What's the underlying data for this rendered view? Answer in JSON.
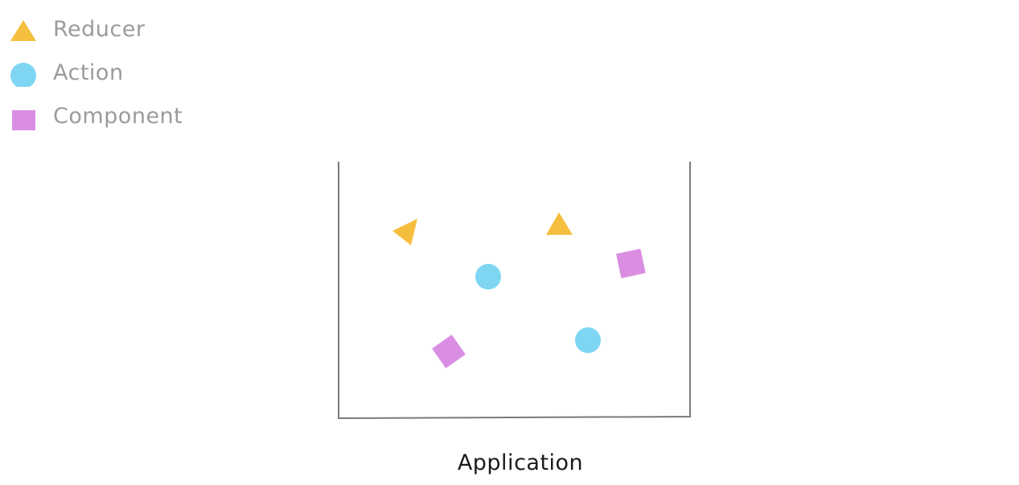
{
  "legend": {
    "items": [
      {
        "label": "Reducer",
        "shape": "triangle",
        "icon": "triangle-icon",
        "color": "#F6BE3F"
      },
      {
        "label": "Action",
        "shape": "circle",
        "icon": "circle-icon",
        "color": "#7FD6F3"
      },
      {
        "label": "Component",
        "shape": "square",
        "icon": "square-icon",
        "color": "#DA8EE2"
      }
    ]
  },
  "container": {
    "label": "Application",
    "stroke_color": "#7a7a7a"
  }
}
